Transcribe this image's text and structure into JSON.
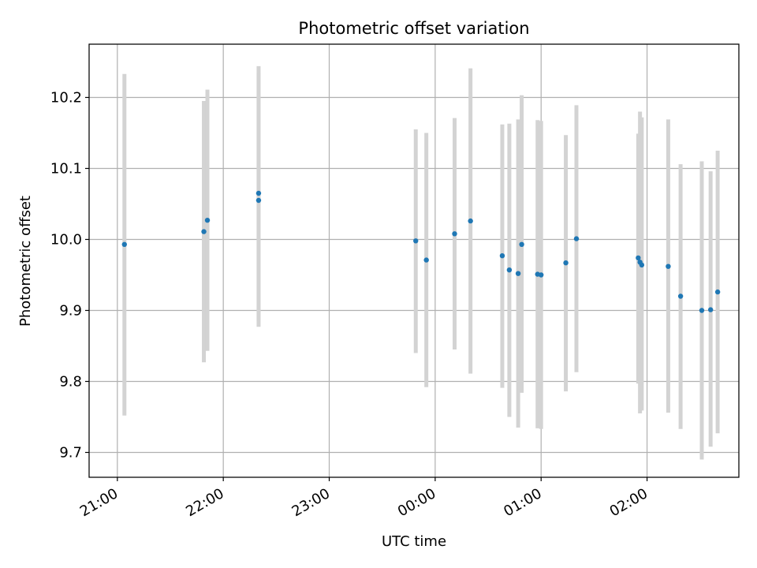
{
  "chart_data": {
    "type": "scatter",
    "title": "Photometric offset variation",
    "xlabel": "UTC time",
    "ylabel": "Photometric offset",
    "x_axis_kind": "time",
    "xlim": [
      "20:44",
      "26:52"
    ],
    "ylim": [
      9.665,
      10.275
    ],
    "grid": true,
    "legend": "none",
    "x_ticks": [
      {
        "t": "21:00",
        "label": "21:00"
      },
      {
        "t": "22:00",
        "label": "22:00"
      },
      {
        "t": "23:00",
        "label": "23:00"
      },
      {
        "t": "24:00",
        "label": "00:00"
      },
      {
        "t": "25:00",
        "label": "01:00"
      },
      {
        "t": "26:00",
        "label": "02:00"
      }
    ],
    "y_ticks": [
      {
        "v": 9.7,
        "label": "9.7"
      },
      {
        "v": 9.8,
        "label": "9.8"
      },
      {
        "v": 9.9,
        "label": "9.9"
      },
      {
        "v": 10.0,
        "label": "10.0"
      },
      {
        "v": 10.1,
        "label": "10.1"
      },
      {
        "v": 10.2,
        "label": "10.2"
      }
    ],
    "colors": {
      "point": "#1f77b4",
      "errorbar": "#d3d3d3",
      "grid": "#b0b0b0"
    },
    "points": [
      {
        "t": "21:04",
        "y": 9.993,
        "ylow": 9.752,
        "yhigh": 10.233
      },
      {
        "t": "21:49",
        "y": 10.011,
        "ylow": 9.827,
        "yhigh": 10.195
      },
      {
        "t": "21:51",
        "y": 10.027,
        "ylow": 9.843,
        "yhigh": 10.211
      },
      {
        "t": "22:20",
        "y": 10.065,
        "ylow": 9.886,
        "yhigh": 10.244
      },
      {
        "t": "22:20",
        "y": 10.055,
        "ylow": 9.877,
        "yhigh": 10.233
      },
      {
        "t": "23:49",
        "y": 9.998,
        "ylow": 9.84,
        "yhigh": 10.155
      },
      {
        "t": "23:55",
        "y": 9.971,
        "ylow": 9.792,
        "yhigh": 10.15
      },
      {
        "t": "24:11",
        "y": 10.008,
        "ylow": 9.845,
        "yhigh": 10.171
      },
      {
        "t": "24:20",
        "y": 10.026,
        "ylow": 9.811,
        "yhigh": 10.241
      },
      {
        "t": "24:38",
        "y": 9.977,
        "ylow": 9.791,
        "yhigh": 10.162
      },
      {
        "t": "24:42",
        "y": 9.957,
        "ylow": 9.75,
        "yhigh": 10.163
      },
      {
        "t": "24:47",
        "y": 9.952,
        "ylow": 9.735,
        "yhigh": 10.169
      },
      {
        "t": "24:49",
        "y": 9.993,
        "ylow": 9.784,
        "yhigh": 10.203
      },
      {
        "t": "24:58",
        "y": 9.951,
        "ylow": 9.734,
        "yhigh": 10.168
      },
      {
        "t": "25:00",
        "y": 9.95,
        "ylow": 9.733,
        "yhigh": 10.167
      },
      {
        "t": "25:14",
        "y": 9.967,
        "ylow": 9.786,
        "yhigh": 10.147
      },
      {
        "t": "25:20",
        "y": 10.001,
        "ylow": 9.813,
        "yhigh": 10.189
      },
      {
        "t": "25:55",
        "y": 9.974,
        "ylow": 9.797,
        "yhigh": 10.149
      },
      {
        "t": "25:56",
        "y": 9.968,
        "ylow": 9.755,
        "yhigh": 10.18
      },
      {
        "t": "25:57",
        "y": 9.964,
        "ylow": 9.759,
        "yhigh": 10.172
      },
      {
        "t": "26:12",
        "y": 9.962,
        "ylow": 9.756,
        "yhigh": 10.169
      },
      {
        "t": "26:19",
        "y": 9.92,
        "ylow": 9.733,
        "yhigh": 10.106
      },
      {
        "t": "26:31",
        "y": 9.9,
        "ylow": 9.69,
        "yhigh": 10.11
      },
      {
        "t": "26:36",
        "y": 9.901,
        "ylow": 9.708,
        "yhigh": 10.096
      },
      {
        "t": "26:40",
        "y": 9.926,
        "ylow": 9.727,
        "yhigh": 10.125
      }
    ]
  }
}
